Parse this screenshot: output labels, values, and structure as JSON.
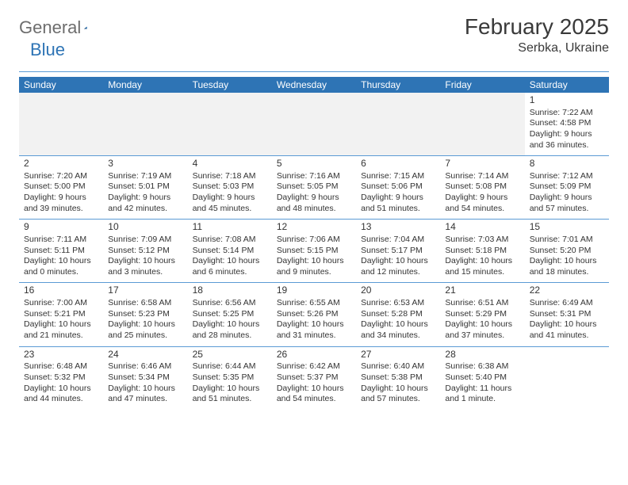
{
  "logo": {
    "general": "General",
    "blue": "Blue"
  },
  "title": "February 2025",
  "location": "Serbka, Ukraine",
  "colors": {
    "header_bg": "#2e74b5",
    "header_fg": "#ffffff",
    "accent_line": "#5b9bd5",
    "blank_bg": "#f2f2f2",
    "text": "#333333",
    "logo_gray": "#6d6d6d",
    "logo_blue": "#2e74b5"
  },
  "daysOfWeek": [
    "Sunday",
    "Monday",
    "Tuesday",
    "Wednesday",
    "Thursday",
    "Friday",
    "Saturday"
  ],
  "weeks": [
    [
      null,
      null,
      null,
      null,
      null,
      null,
      {
        "n": "1",
        "sunrise": "7:22 AM",
        "sunset": "4:58 PM",
        "daylight": "9 hours and 36 minutes."
      }
    ],
    [
      {
        "n": "2",
        "sunrise": "7:20 AM",
        "sunset": "5:00 PM",
        "daylight": "9 hours and 39 minutes."
      },
      {
        "n": "3",
        "sunrise": "7:19 AM",
        "sunset": "5:01 PM",
        "daylight": "9 hours and 42 minutes."
      },
      {
        "n": "4",
        "sunrise": "7:18 AM",
        "sunset": "5:03 PM",
        "daylight": "9 hours and 45 minutes."
      },
      {
        "n": "5",
        "sunrise": "7:16 AM",
        "sunset": "5:05 PM",
        "daylight": "9 hours and 48 minutes."
      },
      {
        "n": "6",
        "sunrise": "7:15 AM",
        "sunset": "5:06 PM",
        "daylight": "9 hours and 51 minutes."
      },
      {
        "n": "7",
        "sunrise": "7:14 AM",
        "sunset": "5:08 PM",
        "daylight": "9 hours and 54 minutes."
      },
      {
        "n": "8",
        "sunrise": "7:12 AM",
        "sunset": "5:09 PM",
        "daylight": "9 hours and 57 minutes."
      }
    ],
    [
      {
        "n": "9",
        "sunrise": "7:11 AM",
        "sunset": "5:11 PM",
        "daylight": "10 hours and 0 minutes."
      },
      {
        "n": "10",
        "sunrise": "7:09 AM",
        "sunset": "5:12 PM",
        "daylight": "10 hours and 3 minutes."
      },
      {
        "n": "11",
        "sunrise": "7:08 AM",
        "sunset": "5:14 PM",
        "daylight": "10 hours and 6 minutes."
      },
      {
        "n": "12",
        "sunrise": "7:06 AM",
        "sunset": "5:15 PM",
        "daylight": "10 hours and 9 minutes."
      },
      {
        "n": "13",
        "sunrise": "7:04 AM",
        "sunset": "5:17 PM",
        "daylight": "10 hours and 12 minutes."
      },
      {
        "n": "14",
        "sunrise": "7:03 AM",
        "sunset": "5:18 PM",
        "daylight": "10 hours and 15 minutes."
      },
      {
        "n": "15",
        "sunrise": "7:01 AM",
        "sunset": "5:20 PM",
        "daylight": "10 hours and 18 minutes."
      }
    ],
    [
      {
        "n": "16",
        "sunrise": "7:00 AM",
        "sunset": "5:21 PM",
        "daylight": "10 hours and 21 minutes."
      },
      {
        "n": "17",
        "sunrise": "6:58 AM",
        "sunset": "5:23 PM",
        "daylight": "10 hours and 25 minutes."
      },
      {
        "n": "18",
        "sunrise": "6:56 AM",
        "sunset": "5:25 PM",
        "daylight": "10 hours and 28 minutes."
      },
      {
        "n": "19",
        "sunrise": "6:55 AM",
        "sunset": "5:26 PM",
        "daylight": "10 hours and 31 minutes."
      },
      {
        "n": "20",
        "sunrise": "6:53 AM",
        "sunset": "5:28 PM",
        "daylight": "10 hours and 34 minutes."
      },
      {
        "n": "21",
        "sunrise": "6:51 AM",
        "sunset": "5:29 PM",
        "daylight": "10 hours and 37 minutes."
      },
      {
        "n": "22",
        "sunrise": "6:49 AM",
        "sunset": "5:31 PM",
        "daylight": "10 hours and 41 minutes."
      }
    ],
    [
      {
        "n": "23",
        "sunrise": "6:48 AM",
        "sunset": "5:32 PM",
        "daylight": "10 hours and 44 minutes."
      },
      {
        "n": "24",
        "sunrise": "6:46 AM",
        "sunset": "5:34 PM",
        "daylight": "10 hours and 47 minutes."
      },
      {
        "n": "25",
        "sunrise": "6:44 AM",
        "sunset": "5:35 PM",
        "daylight": "10 hours and 51 minutes."
      },
      {
        "n": "26",
        "sunrise": "6:42 AM",
        "sunset": "5:37 PM",
        "daylight": "10 hours and 54 minutes."
      },
      {
        "n": "27",
        "sunrise": "6:40 AM",
        "sunset": "5:38 PM",
        "daylight": "10 hours and 57 minutes."
      },
      {
        "n": "28",
        "sunrise": "6:38 AM",
        "sunset": "5:40 PM",
        "daylight": "11 hours and 1 minute."
      },
      null
    ]
  ],
  "labels": {
    "sunrise": "Sunrise: ",
    "sunset": "Sunset: ",
    "daylight": "Daylight: "
  }
}
